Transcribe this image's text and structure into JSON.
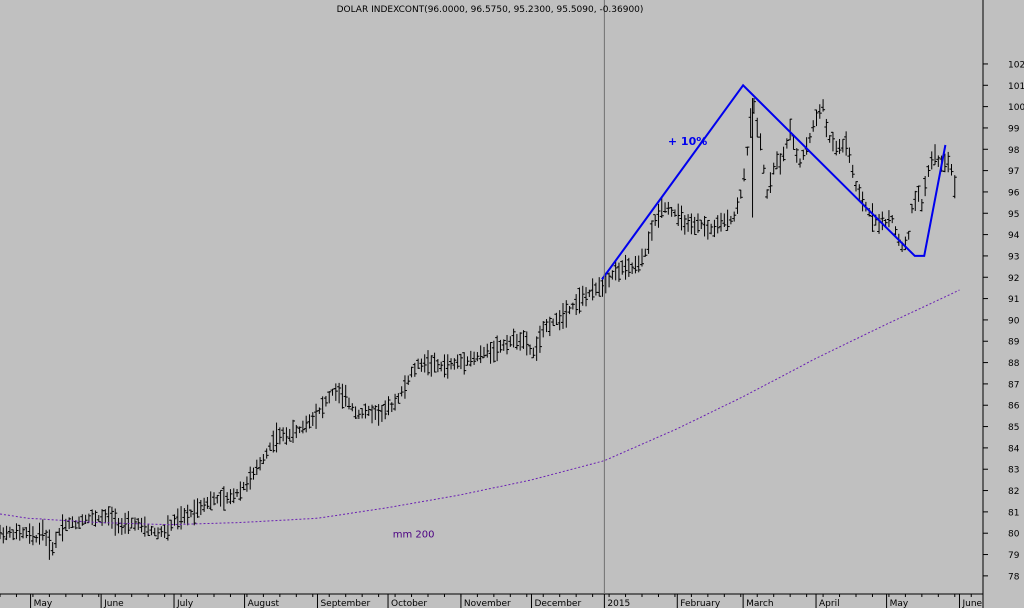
{
  "chart_data": {
    "type": "ohlc",
    "title": "DOLAR INDEXCONT(96.0000, 96.5750, 95.2300, 95.5090, -0.36900)",
    "y_axis": {
      "side": "right",
      "min": 77,
      "max": 103,
      "ticks": [
        78,
        79,
        80,
        81,
        82,
        83,
        84,
        85,
        86,
        87,
        88,
        89,
        90,
        91,
        92,
        93,
        94,
        95,
        96,
        97,
        98,
        99,
        100,
        101,
        102
      ]
    },
    "x_axis": {
      "labels": [
        "May",
        "June",
        "July",
        "August",
        "September",
        "October",
        "November",
        "December",
        "2015",
        "February",
        "March",
        "April",
        "May",
        "June"
      ],
      "label_days": [
        1,
        31,
        62,
        92,
        123,
        153,
        184,
        214,
        245,
        276,
        304,
        335,
        365,
        396
      ],
      "range_days": [
        -12,
        406
      ],
      "year_divider_day": 245
    },
    "price_path": {
      "days": [
        -12,
        0,
        3,
        6,
        10,
        14,
        16,
        18,
        20,
        24,
        30,
        35,
        40,
        45,
        50,
        55,
        60,
        62,
        64,
        70,
        75,
        80,
        85,
        90,
        95,
        100,
        105,
        110,
        115,
        120,
        125,
        130,
        135,
        140,
        145,
        150,
        155,
        160,
        163,
        166,
        170,
        175,
        180,
        185,
        190,
        195,
        200,
        205,
        210,
        215,
        220,
        225,
        230,
        235,
        240,
        243,
        244,
        248,
        252,
        256,
        260,
        263,
        266,
        270,
        275,
        280,
        283,
        286,
        290,
        293,
        296,
        300,
        302,
        304,
        305,
        307,
        308,
        312,
        314,
        318,
        320,
        324,
        328,
        332,
        336,
        338,
        340,
        344,
        348,
        352,
        356,
        360,
        364,
        367,
        370,
        372,
        374,
        376,
        379,
        380,
        382,
        385,
        387,
        389,
        392,
        395
      ],
      "values": [
        80.0,
        80.0,
        79.7,
        80.2,
        79.2,
        80.3,
        80.4,
        80.5,
        80.4,
        80.7,
        80.7,
        80.8,
        80.3,
        80.5,
        80.2,
        80.0,
        80.2,
        80.6,
        80.6,
        81.0,
        81.4,
        81.6,
        81.6,
        82.0,
        82.6,
        83.5,
        84.5,
        84.6,
        84.8,
        85.3,
        85.9,
        86.7,
        86.3,
        85.6,
        85.7,
        85.6,
        86.0,
        86.8,
        87.5,
        87.9,
        88.0,
        87.8,
        87.9,
        88.1,
        88.2,
        88.5,
        88.7,
        89.0,
        89.1,
        88.4,
        89.7,
        90.0,
        90.5,
        91.0,
        91.3,
        91.6,
        91.6,
        92.1,
        92.4,
        92.4,
        92.6,
        93.3,
        94.5,
        95.4,
        95.0,
        94.5,
        94.3,
        94.5,
        94.2,
        94.4,
        94.6,
        94.8,
        95.4,
        96.5,
        97.2,
        99.0,
        100.3,
        98.0,
        95.8,
        97.5,
        97.3,
        98.8,
        97.3,
        98.4,
        99.8,
        100.0,
        98.6,
        98.0,
        98.3,
        96.2,
        95.3,
        94.7,
        94.5,
        94.8,
        93.8,
        93.4,
        93.6,
        95.4,
        95.9,
        95.4,
        96.7,
        97.8,
        97.4,
        97.3,
        97.5,
        95.5
      ],
      "bar_step_days": 1.4,
      "bar_range": 0.6
    },
    "series": [
      {
        "name": "mm 200",
        "type": "line",
        "style": "dashed",
        "color": "#6a1fb3",
        "x": [
          -12,
          0,
          30,
          60,
          90,
          123,
          153,
          184,
          214,
          245,
          276,
          304,
          335,
          365,
          396
        ],
        "y": [
          80.9,
          80.7,
          80.5,
          80.4,
          80.5,
          80.7,
          81.2,
          81.8,
          82.5,
          83.4,
          84.9,
          86.4,
          88.2,
          89.8,
          91.4
        ]
      },
      {
        "type": "trendline",
        "color": "#0000ee",
        "x": [
          244,
          304,
          377,
          381,
          390
        ],
        "y": [
          91.9,
          101.0,
          93.0,
          93.0,
          98.2
        ]
      }
    ],
    "annotations": [
      {
        "text": "+ 10%",
        "x": 272,
        "y": 98.2,
        "color": "#0000ee"
      },
      {
        "text": "mm 200",
        "x": 155,
        "y": 79.8,
        "color": "#4b0082"
      }
    ],
    "colors": {
      "background": "#c0c0c0",
      "bars": "#000000",
      "trendline": "#0000ee",
      "moving_average": "#6a1fb3",
      "divider": "#707070"
    }
  }
}
